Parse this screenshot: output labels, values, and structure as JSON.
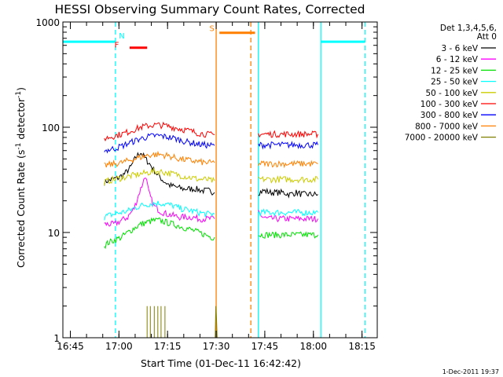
{
  "chart_data": {
    "type": "line",
    "title": "HESSI Observing Summary Count Rates, Corrected",
    "xlabel": "Start Time (01-Dec-11 16:42:42)",
    "ylabel": "Corrected Count Rate (s⁻¹ detector⁻¹)",
    "ylabel_parts": {
      "main": "Corrected Count Rate (s",
      "sup1": "-1",
      "mid": " detector",
      "sup2": "-1",
      "end": ")"
    },
    "x_unit": "minutes from 16:42:42",
    "xlim": [
      0,
      97
    ],
    "ylim": [
      1,
      1000
    ],
    "yscale": "log",
    "x_ticks": [
      {
        "label": "16:45",
        "x": 2.3
      },
      {
        "label": "17:00",
        "x": 17.3
      },
      {
        "label": "17:15",
        "x": 32.3
      },
      {
        "label": "17:30",
        "x": 47.3
      },
      {
        "label": "17:45",
        "x": 62.3
      },
      {
        "label": "18:00",
        "x": 77.3
      },
      {
        "label": "18:15",
        "x": 92.3
      }
    ],
    "y_ticks": [
      {
        "label": "1",
        "y": 1
      },
      {
        "label": "10",
        "y": 10
      },
      {
        "label": "100",
        "y": 100
      },
      {
        "label": "1000",
        "y": 1000
      }
    ],
    "legend_title": [
      "Det 1,3,4,5,6,",
      "Att 0"
    ],
    "legend_position": "top-right",
    "series": [
      {
        "name": "3 - 6 keV",
        "color": "#000000",
        "segments": [
          {
            "x": [
              12.8,
              13.8,
              15,
              17,
              19,
              21,
              22.5,
              24,
              25.5,
              27,
              29,
              31,
              33,
              35,
              37,
              39,
              41,
              43,
              45,
              46.8
            ],
            "y": [
              30,
              31,
              32,
              33,
              36,
              42,
              52,
              58,
              50,
              44,
              36,
              31,
              28,
              27,
              26,
              26,
              26,
              25,
              25,
              24
            ]
          },
          {
            "x": [
              60.3,
              62,
              64,
              66,
              68,
              70,
              72,
              74,
              76,
              78.7
            ],
            "y": [
              24,
              25,
              24,
              24,
              24,
              23,
              24,
              23,
              23,
              23
            ]
          }
        ]
      },
      {
        "name": "6 - 12 keV",
        "color": "#ff00ff",
        "segments": [
          {
            "x": [
              12.8,
              14,
              16,
              18,
              20,
              22,
              24,
              25.5,
              26.5,
              28,
              30,
              32,
              34,
              36,
              38,
              40,
              42,
              44,
              46,
              46.8
            ],
            "y": [
              12,
              12,
              12,
              13,
              14,
              17,
              26,
              35,
              24,
              18,
              16,
              15,
              14.5,
              14,
              14,
              14,
              13.5,
              13.5,
              13.5,
              13.5
            ]
          },
          {
            "x": [
              60.3,
              61.5,
              63,
              65,
              67,
              70,
              73,
              76,
              78.7
            ],
            "y": [
              16,
              14,
              13.5,
              13.5,
              13.5,
              13.5,
              13.5,
              13.5,
              13.5
            ]
          }
        ]
      },
      {
        "name": "12 - 25 keV",
        "color": "#00e000",
        "segments": [
          {
            "x": [
              12.8,
              14,
              16,
              18,
              20,
              22,
              24,
              26,
              28,
              30,
              32,
              34,
              36,
              38,
              40,
              42,
              44,
              46,
              46.8
            ],
            "y": [
              7.5,
              8,
              8.5,
              9,
              10,
              11,
              12,
              12.5,
              13,
              13,
              12.5,
              12,
              11.5,
              11,
              10.5,
              10,
              9.5,
              9,
              9
            ]
          },
          {
            "x": [
              60.3,
              62,
              64,
              66,
              68,
              70,
              72,
              74,
              76,
              78.7
            ],
            "y": [
              9.5,
              9.5,
              9.5,
              9.5,
              9.5,
              9.5,
              9.5,
              9.5,
              9.5,
              9.5
            ]
          }
        ]
      },
      {
        "name": "25 - 50 keV",
        "color": "#00ffff",
        "segments": [
          {
            "x": [
              12.8,
              14,
              16,
              18,
              20,
              22,
              24,
              26,
              28,
              30,
              32,
              34,
              36,
              38,
              40,
              42,
              44,
              46,
              46.8
            ],
            "y": [
              14,
              14.5,
              15,
              15.5,
              16,
              17,
              18,
              18.5,
              19,
              19,
              18.5,
              18,
              17,
              16.5,
              16,
              15.5,
              15,
              15,
              15
            ]
          },
          {
            "x": [
              60.3,
              62,
              64,
              66,
              68,
              70,
              72,
              74,
              76,
              78.7
            ],
            "y": [
              15.5,
              15.5,
              15.5,
              15.5,
              15.5,
              15.5,
              15.5,
              15.5,
              15.5,
              15.5
            ]
          }
        ]
      },
      {
        "name": "50 - 100 keV",
        "color": "#cccc00",
        "segments": [
          {
            "x": [
              12.8,
              14,
              16,
              18,
              20,
              22,
              24,
              26,
              28,
              30,
              32,
              34,
              36,
              38,
              40,
              42,
              44,
              46,
              46.8
            ],
            "y": [
              30,
              31,
              32,
              33,
              34,
              35,
              36,
              37,
              38,
              38,
              37,
              36,
              35,
              34,
              33,
              32,
              32,
              31,
              31
            ]
          },
          {
            "x": [
              60.3,
              62,
              64,
              66,
              68,
              70,
              72,
              74,
              76,
              78.7
            ],
            "y": [
              32,
              32,
              32,
              32,
              32,
              32,
              32,
              32,
              32,
              32
            ]
          }
        ]
      },
      {
        "name": "100 - 300 keV",
        "color": "#ff0000",
        "segments": [
          {
            "x": [
              12.8,
              14,
              16,
              18,
              20,
              22,
              24,
              26,
              28,
              30,
              32,
              34,
              36,
              38,
              40,
              42,
              44,
              46,
              46.8
            ],
            "y": [
              78,
              80,
              83,
              86,
              90,
              95,
              100,
              103,
              105,
              105,
              103,
              100,
              97,
              94,
              91,
              88,
              86,
              85,
              85
            ]
          },
          {
            "x": [
              60.3,
              62,
              64,
              66,
              68,
              70,
              72,
              74,
              76,
              78.7
            ],
            "y": [
              86,
              86,
              86,
              86,
              86,
              86,
              86,
              86,
              86,
              86
            ]
          }
        ]
      },
      {
        "name": "300 - 800 keV",
        "color": "#0000ff",
        "segments": [
          {
            "x": [
              12.8,
              14,
              16,
              18,
              20,
              22,
              24,
              26,
              28,
              30,
              32,
              34,
              36,
              38,
              40,
              42,
              44,
              46,
              46.8
            ],
            "y": [
              60,
              61,
              63,
              66,
              70,
              74,
              78,
              81,
              83,
              83,
              81,
              79,
              76,
              73,
              71,
              69,
              68,
              67,
              67
            ]
          },
          {
            "x": [
              60.3,
              62,
              64,
              66,
              68,
              70,
              72,
              74,
              76,
              78.7
            ],
            "y": [
              68,
              68,
              68,
              68,
              68,
              68,
              68,
              68,
              68,
              68
            ]
          }
        ]
      },
      {
        "name": "800 - 7000 keV",
        "color": "#ff8000",
        "segments": [
          {
            "x": [
              12.8,
              14,
              16,
              18,
              20,
              22,
              24,
              26,
              28,
              30,
              32,
              34,
              36,
              38,
              40,
              42,
              44,
              46,
              46.8
            ],
            "y": [
              43,
              44,
              45,
              46,
              48,
              50,
              52,
              54,
              55,
              55,
              54,
              52,
              50,
              49,
              48,
              47,
              46,
              46,
              46
            ]
          },
          {
            "x": [
              60.3,
              62,
              64,
              66,
              68,
              70,
              72,
              74,
              76,
              78.7
            ],
            "y": [
              45,
              45,
              45,
              45,
              45,
              45,
              45,
              45,
              45,
              45
            ]
          }
        ]
      },
      {
        "name": "7000 - 20000 keV",
        "color": "#808000",
        "segments": [
          {
            "x": [
              26,
              26,
              26,
              27,
              27,
              27,
              28.2,
              28.2,
              28.2,
              29.3,
              29.3,
              29.3,
              30.3,
              30.3,
              30.3,
              31.5,
              31.5,
              31.5
            ],
            "y": [
              1,
              2,
              1,
              1,
              2,
              1,
              1,
              2,
              1,
              1,
              2,
              1,
              1,
              2,
              1,
              1,
              2,
              1
            ]
          },
          {
            "x": [
              47,
              47.2,
              47.4,
              47.6
            ],
            "y": [
              1,
              2,
              1.5,
              1
            ]
          }
        ]
      }
    ],
    "annotations": [
      {
        "label": "N",
        "color": "#00ffff",
        "x": 18.2,
        "y": 700
      },
      {
        "label": "F",
        "color": "#ff0000",
        "x": 16.6,
        "y": 570
      },
      {
        "label": "S",
        "color": "#ff8000",
        "x": 46.0,
        "y": 820
      }
    ],
    "bars": [
      {
        "color": "#00ffff",
        "x": [
          0,
          16.2
        ],
        "y": 650
      },
      {
        "color": "#00ffff",
        "x": [
          79.6,
          93.2
        ],
        "y": 650
      },
      {
        "color": "#ff0000",
        "x": [
          20.6,
          26.0
        ],
        "y": 570
      },
      {
        "color": "#ff8000",
        "x": [
          48.3,
          59.3
        ],
        "y": 790
      }
    ],
    "vlines": [
      {
        "color": "#00ffff",
        "x": 16.2,
        "dashed": true
      },
      {
        "color": "#00ffff",
        "x": 93.2,
        "dashed": true
      },
      {
        "color": "#00ffff",
        "x": 60.3,
        "dashed": false
      },
      {
        "color": "#00ffff",
        "x": 79.6,
        "dashed": false
      },
      {
        "color": "#ff8000",
        "x": 47.3,
        "dashed": false
      },
      {
        "color": "#ff8000",
        "x": 58.0,
        "dashed": true
      }
    ],
    "footer": "1-Dec-2011 19:37"
  }
}
